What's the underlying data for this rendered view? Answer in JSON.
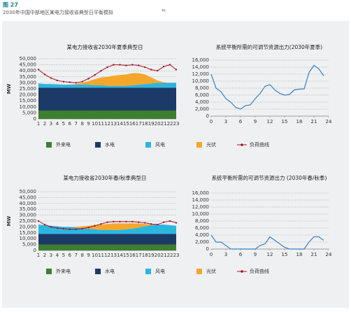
{
  "figure_label": "图 27",
  "caption": "2030年中国中部地区某电力接收省典型日平衡模拟",
  "caption_note": "46",
  "chart_data": [
    {
      "type": "stacked_area",
      "title": "某电力接收省2030年夏季典型日",
      "ylabel": "MW",
      "categories": [
        "1",
        "2",
        "3",
        "4",
        "5",
        "6",
        "7",
        "8",
        "9",
        "10",
        "11",
        "12",
        "13",
        "14",
        "15",
        "16",
        "17",
        "18",
        "19",
        "20",
        "21",
        "22",
        "23"
      ],
      "ylim": [
        0,
        50000
      ],
      "yticks": [
        0,
        {
          "value": 5000,
          "label": "5,000"
        },
        {
          "value": 10000,
          "label": "10,000"
        },
        {
          "value": 15000,
          "label": "15,000"
        },
        {
          "value": 20000,
          "label": "20,000"
        },
        {
          "value": 25000,
          "label": "25,000"
        },
        {
          "value": 30000,
          "label": "30,000"
        },
        {
          "value": 35000,
          "label": "35,000"
        },
        {
          "value": 40000,
          "label": "40,000"
        },
        {
          "value": 45000,
          "label": "45,000"
        },
        {
          "value": 50000,
          "label": "50,000"
        }
      ],
      "grid": true,
      "series": [
        {
          "name": "外来电",
          "color": "#3c7f2f",
          "values": [
            7000,
            7000,
            7000,
            7000,
            7000,
            7000,
            7000,
            7000,
            7000,
            7000,
            7000,
            7000,
            7000,
            7000,
            7000,
            7000,
            7000,
            7000,
            7000,
            7000,
            7000,
            7000,
            7000
          ]
        },
        {
          "name": "水电",
          "color": "#1c3a68",
          "values": [
            19000,
            19000,
            19000,
            19000,
            19000,
            19000,
            19000,
            19000,
            19000,
            19000,
            19000,
            19000,
            19000,
            19000,
            19000,
            19000,
            19000,
            19000,
            19000,
            19000,
            19000,
            19000,
            19000
          ]
        },
        {
          "name": "风电",
          "color": "#2bb6df",
          "values": [
            3500,
            3000,
            3000,
            2800,
            2500,
            2500,
            2500,
            2500,
            2500,
            2000,
            2000,
            1500,
            1500,
            1500,
            1500,
            2000,
            2500,
            3000,
            3500,
            4000,
            4000,
            4000,
            4000
          ]
        },
        {
          "name": "光伏",
          "color": "#f5a72c",
          "values": [
            0,
            0,
            0,
            0,
            0,
            0,
            500,
            1500,
            3000,
            5000,
            6500,
            7500,
            8500,
            9000,
            9500,
            10000,
            9500,
            8000,
            5000,
            2000,
            500,
            0,
            0
          ]
        },
        {
          "name": "负荷曲线",
          "color": "#a3122c",
          "kind": "line",
          "values": [
            41000,
            37000,
            34000,
            32000,
            31000,
            30500,
            30000,
            31000,
            33500,
            36500,
            40000,
            43000,
            45000,
            45000,
            44500,
            45000,
            44500,
            43000,
            41000,
            40000,
            43500,
            45000,
            41000
          ]
        }
      ]
    },
    {
      "type": "line",
      "title": "系统平衡所需的可调节资源出力(2030年夏季)",
      "x": [
        0,
        1,
        2,
        3,
        4,
        5,
        6,
        7,
        8,
        9,
        10,
        11,
        12,
        13,
        14,
        15,
        16,
        17,
        18,
        19,
        20,
        21,
        22,
        23
      ],
      "xlim": [
        0,
        24
      ],
      "xticks": [
        0,
        3,
        6,
        9,
        12,
        15,
        18,
        21,
        24
      ],
      "ylim": [
        0,
        16000
      ],
      "yticks": [
        0,
        {
          "value": 2000,
          "label": "2,000"
        },
        {
          "value": 4000,
          "label": "4,000"
        },
        {
          "value": 6000,
          "label": "6,000"
        },
        {
          "value": 8000,
          "label": "8,000"
        },
        {
          "value": 10000,
          "label": "10,000"
        },
        {
          "value": 12000,
          "label": "12,000"
        },
        {
          "value": 14000,
          "label": "14,000"
        },
        {
          "value": 16000,
          "label": "16,000"
        }
      ],
      "grid": true,
      "color": "#3a82c4",
      "values": [
        12000,
        8000,
        7000,
        5000,
        4000,
        2500,
        2000,
        3000,
        3200,
        5000,
        6500,
        8500,
        9000,
        7500,
        6500,
        6000,
        6200,
        7500,
        7700,
        7800,
        12500,
        14500,
        13500,
        11500
      ]
    },
    {
      "type": "stacked_area",
      "title": "某电力接收省2030年春/秋季典型日",
      "ylabel": "MW",
      "categories": [
        "1",
        "2",
        "3",
        "4",
        "5",
        "6",
        "7",
        "8",
        "9",
        "10",
        "11",
        "12",
        "13",
        "14",
        "15",
        "16",
        "17",
        "18",
        "19",
        "20",
        "21",
        "22",
        "23"
      ],
      "ylim": [
        0,
        50000
      ],
      "yticks": [
        0,
        {
          "value": 5000,
          "label": "5,000"
        },
        {
          "value": 10000,
          "label": "10,000"
        },
        {
          "value": 15000,
          "label": "15,000"
        },
        {
          "value": 20000,
          "label": "20,000"
        },
        {
          "value": 25000,
          "label": "25,000"
        },
        {
          "value": 30000,
          "label": "30,000"
        },
        {
          "value": 35000,
          "label": "35,000"
        },
        {
          "value": 40000,
          "label": "40,000"
        },
        {
          "value": 45000,
          "label": "45,000"
        },
        {
          "value": 50000,
          "label": "50,000"
        }
      ],
      "grid": true,
      "series": [
        {
          "name": "外来电",
          "color": "#3c7f2f",
          "values": [
            5000,
            5000,
            5000,
            5000,
            5000,
            5000,
            5000,
            5000,
            5000,
            5000,
            5000,
            5000,
            5000,
            5000,
            5000,
            5000,
            5000,
            5000,
            5000,
            5000,
            5000,
            5000,
            5000
          ]
        },
        {
          "name": "水电",
          "color": "#1c3a68",
          "values": [
            9000,
            9000,
            9000,
            9000,
            9000,
            9000,
            9000,
            9000,
            9000,
            9000,
            9000,
            9000,
            9000,
            9000,
            9000,
            9000,
            9000,
            9000,
            9000,
            9000,
            9000,
            9000,
            9000
          ]
        },
        {
          "name": "风电",
          "color": "#2bb6df",
          "values": [
            8000,
            7500,
            7000,
            6500,
            6000,
            6000,
            5500,
            5000,
            4500,
            4000,
            3500,
            3500,
            3500,
            3500,
            4000,
            4500,
            5500,
            6500,
            7500,
            8000,
            8000,
            7500,
            7000
          ]
        },
        {
          "name": "光伏",
          "color": "#f5a72c",
          "values": [
            0,
            0,
            0,
            0,
            0,
            0,
            500,
            1500,
            2500,
            3500,
            4500,
            5000,
            5500,
            5500,
            5000,
            4500,
            3500,
            2000,
            500,
            0,
            0,
            0,
            0
          ]
        },
        {
          "name": "负荷曲线",
          "color": "#a3122c",
          "kind": "line",
          "values": [
            25000,
            22000,
            20000,
            19000,
            18500,
            18000,
            18000,
            18500,
            19500,
            21000,
            22500,
            24000,
            24500,
            24500,
            24500,
            24500,
            24000,
            23500,
            22500,
            22000,
            24000,
            25000,
            23500
          ]
        }
      ]
    },
    {
      "type": "line",
      "title": "系统平衡所需的可调节资源出力 (2030年春/秋季)",
      "x": [
        0,
        1,
        2,
        3,
        4,
        5,
        6,
        7,
        8,
        9,
        10,
        11,
        12,
        13,
        14,
        15,
        16,
        17,
        18,
        19,
        20,
        21,
        22,
        23
      ],
      "xlim": [
        0,
        24
      ],
      "xticks": [
        0,
        3,
        6,
        9,
        12,
        15,
        18,
        21,
        24
      ],
      "ylim": [
        0,
        16000
      ],
      "yticks": [
        0,
        {
          "value": 2000,
          "label": "2,000"
        },
        {
          "value": 4000,
          "label": "4,000"
        },
        {
          "value": 6000,
          "label": "6,000"
        },
        {
          "value": 8000,
          "label": "8,000"
        },
        {
          "value": 10000,
          "label": "10,000"
        },
        {
          "value": 12000,
          "label": "12,000"
        },
        {
          "value": 14000,
          "label": "14,000"
        },
        {
          "value": 16000,
          "label": "16,000"
        }
      ],
      "grid": true,
      "color": "#3a82c4",
      "values": [
        4000,
        2000,
        2000,
        1000,
        0,
        0,
        0,
        0,
        0,
        0,
        1000,
        1500,
        3500,
        2500,
        1500,
        500,
        0,
        0,
        0,
        0,
        2000,
        3500,
        3500,
        2500
      ]
    }
  ]
}
